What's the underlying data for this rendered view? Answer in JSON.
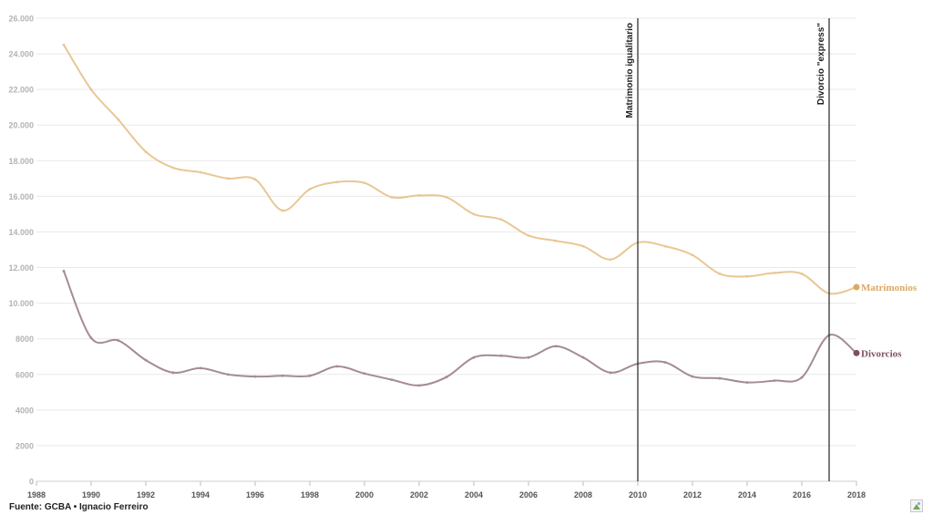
{
  "chart_data": {
    "type": "line",
    "xlim": [
      1988,
      2018
    ],
    "ylim": [
      0,
      26000
    ],
    "x_ticks": [
      1988,
      1990,
      1992,
      1994,
      1996,
      1998,
      2000,
      2002,
      2004,
      2006,
      2008,
      2010,
      2012,
      2014,
      2016,
      2018
    ],
    "y_ticks": [
      0,
      2000,
      4000,
      6000,
      8000,
      10000,
      12000,
      14000,
      16000,
      18000,
      20000,
      22000,
      24000,
      26000
    ],
    "y_tick_labels": [
      "0",
      "2000",
      "4000",
      "6000",
      "8000",
      "10.000",
      "12.000",
      "14.000",
      "16.000",
      "18.000",
      "20.000",
      "22.000",
      "24.000",
      "26.000"
    ],
    "x": [
      1989,
      1990,
      1991,
      1992,
      1993,
      1994,
      1995,
      1996,
      1997,
      1998,
      1999,
      2000,
      2001,
      2002,
      2003,
      2004,
      2005,
      2006,
      2007,
      2008,
      2009,
      2010,
      2011,
      2012,
      2013,
      2014,
      2015,
      2016,
      2017,
      2018
    ],
    "series": [
      {
        "name": "Matrimonios",
        "color": "#e8c795",
        "label_color": "#dca963",
        "values": [
          24500,
          22000,
          20300,
          18500,
          17600,
          17350,
          17000,
          16950,
          15200,
          16400,
          16800,
          16750,
          15950,
          16050,
          15950,
          15000,
          14700,
          13800,
          13500,
          13200,
          12450,
          13400,
          13200,
          12700,
          11650,
          11500,
          11700,
          11650,
          10550,
          10900
        ]
      },
      {
        "name": "Divorcios",
        "color": "#a48a98",
        "label_color": "#7f4e64",
        "values": [
          11800,
          8050,
          7900,
          6800,
          6100,
          6350,
          6000,
          5880,
          5920,
          5920,
          6450,
          6050,
          5700,
          5380,
          5850,
          6950,
          7050,
          6950,
          7580,
          6950,
          6100,
          6600,
          6680,
          5880,
          5780,
          5550,
          5650,
          5830,
          8200,
          7200
        ]
      }
    ],
    "annotations": [
      {
        "x": 2010,
        "text": "Matrimonio igualitario"
      },
      {
        "x": 2017,
        "text": "Divorcio \"express\""
      }
    ]
  },
  "footer": {
    "source": "Fuente: GCBA • Ignacio Ferreiro"
  },
  "icons": {
    "broken_image": "broken-image-icon"
  }
}
